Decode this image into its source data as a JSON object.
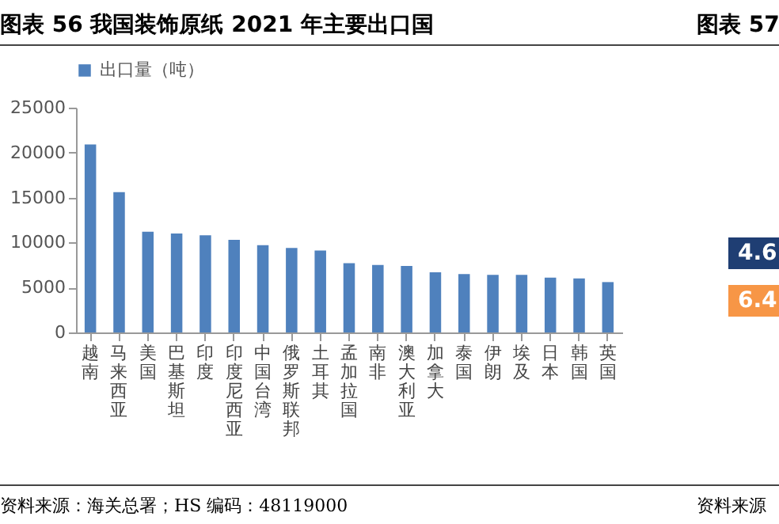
{
  "chart_data": [
    {
      "type": "bar",
      "title": "图表 56 我国装饰原纸 2021 年主要出口国",
      "categories": [
        "越南",
        "马来西亚",
        "美国",
        "巴基斯坦",
        "印度",
        "印度尼西亚",
        "中国台湾",
        "俄罗斯联邦",
        "土耳其",
        "孟加拉国",
        "南非",
        "澳大利亚",
        "加拿大",
        "泰国",
        "伊朗",
        "埃及",
        "日本",
        "韩国",
        "英国"
      ],
      "series": [
        {
          "name": "出口量（吨）",
          "color": "#4f81bd",
          "values": [
            20900,
            15600,
            11200,
            11000,
            10800,
            10300,
            9700,
            9400,
            9100,
            7700,
            7500,
            7400,
            6700,
            6500,
            6400,
            6400,
            6100,
            6000,
            5600
          ]
        }
      ],
      "ylim": [
        0,
        25000
      ],
      "yticks": [
        0,
        5000,
        10000,
        15000,
        20000,
        25000
      ],
      "grid": false,
      "legend": "top",
      "annotations": [
        "资料来源：海关总署；HS 编码：48119000"
      ]
    },
    {
      "type": "other",
      "title": "图表 57",
      "annotations": [
        "4.6",
        "6.4",
        "资料来源"
      ]
    }
  ]
}
